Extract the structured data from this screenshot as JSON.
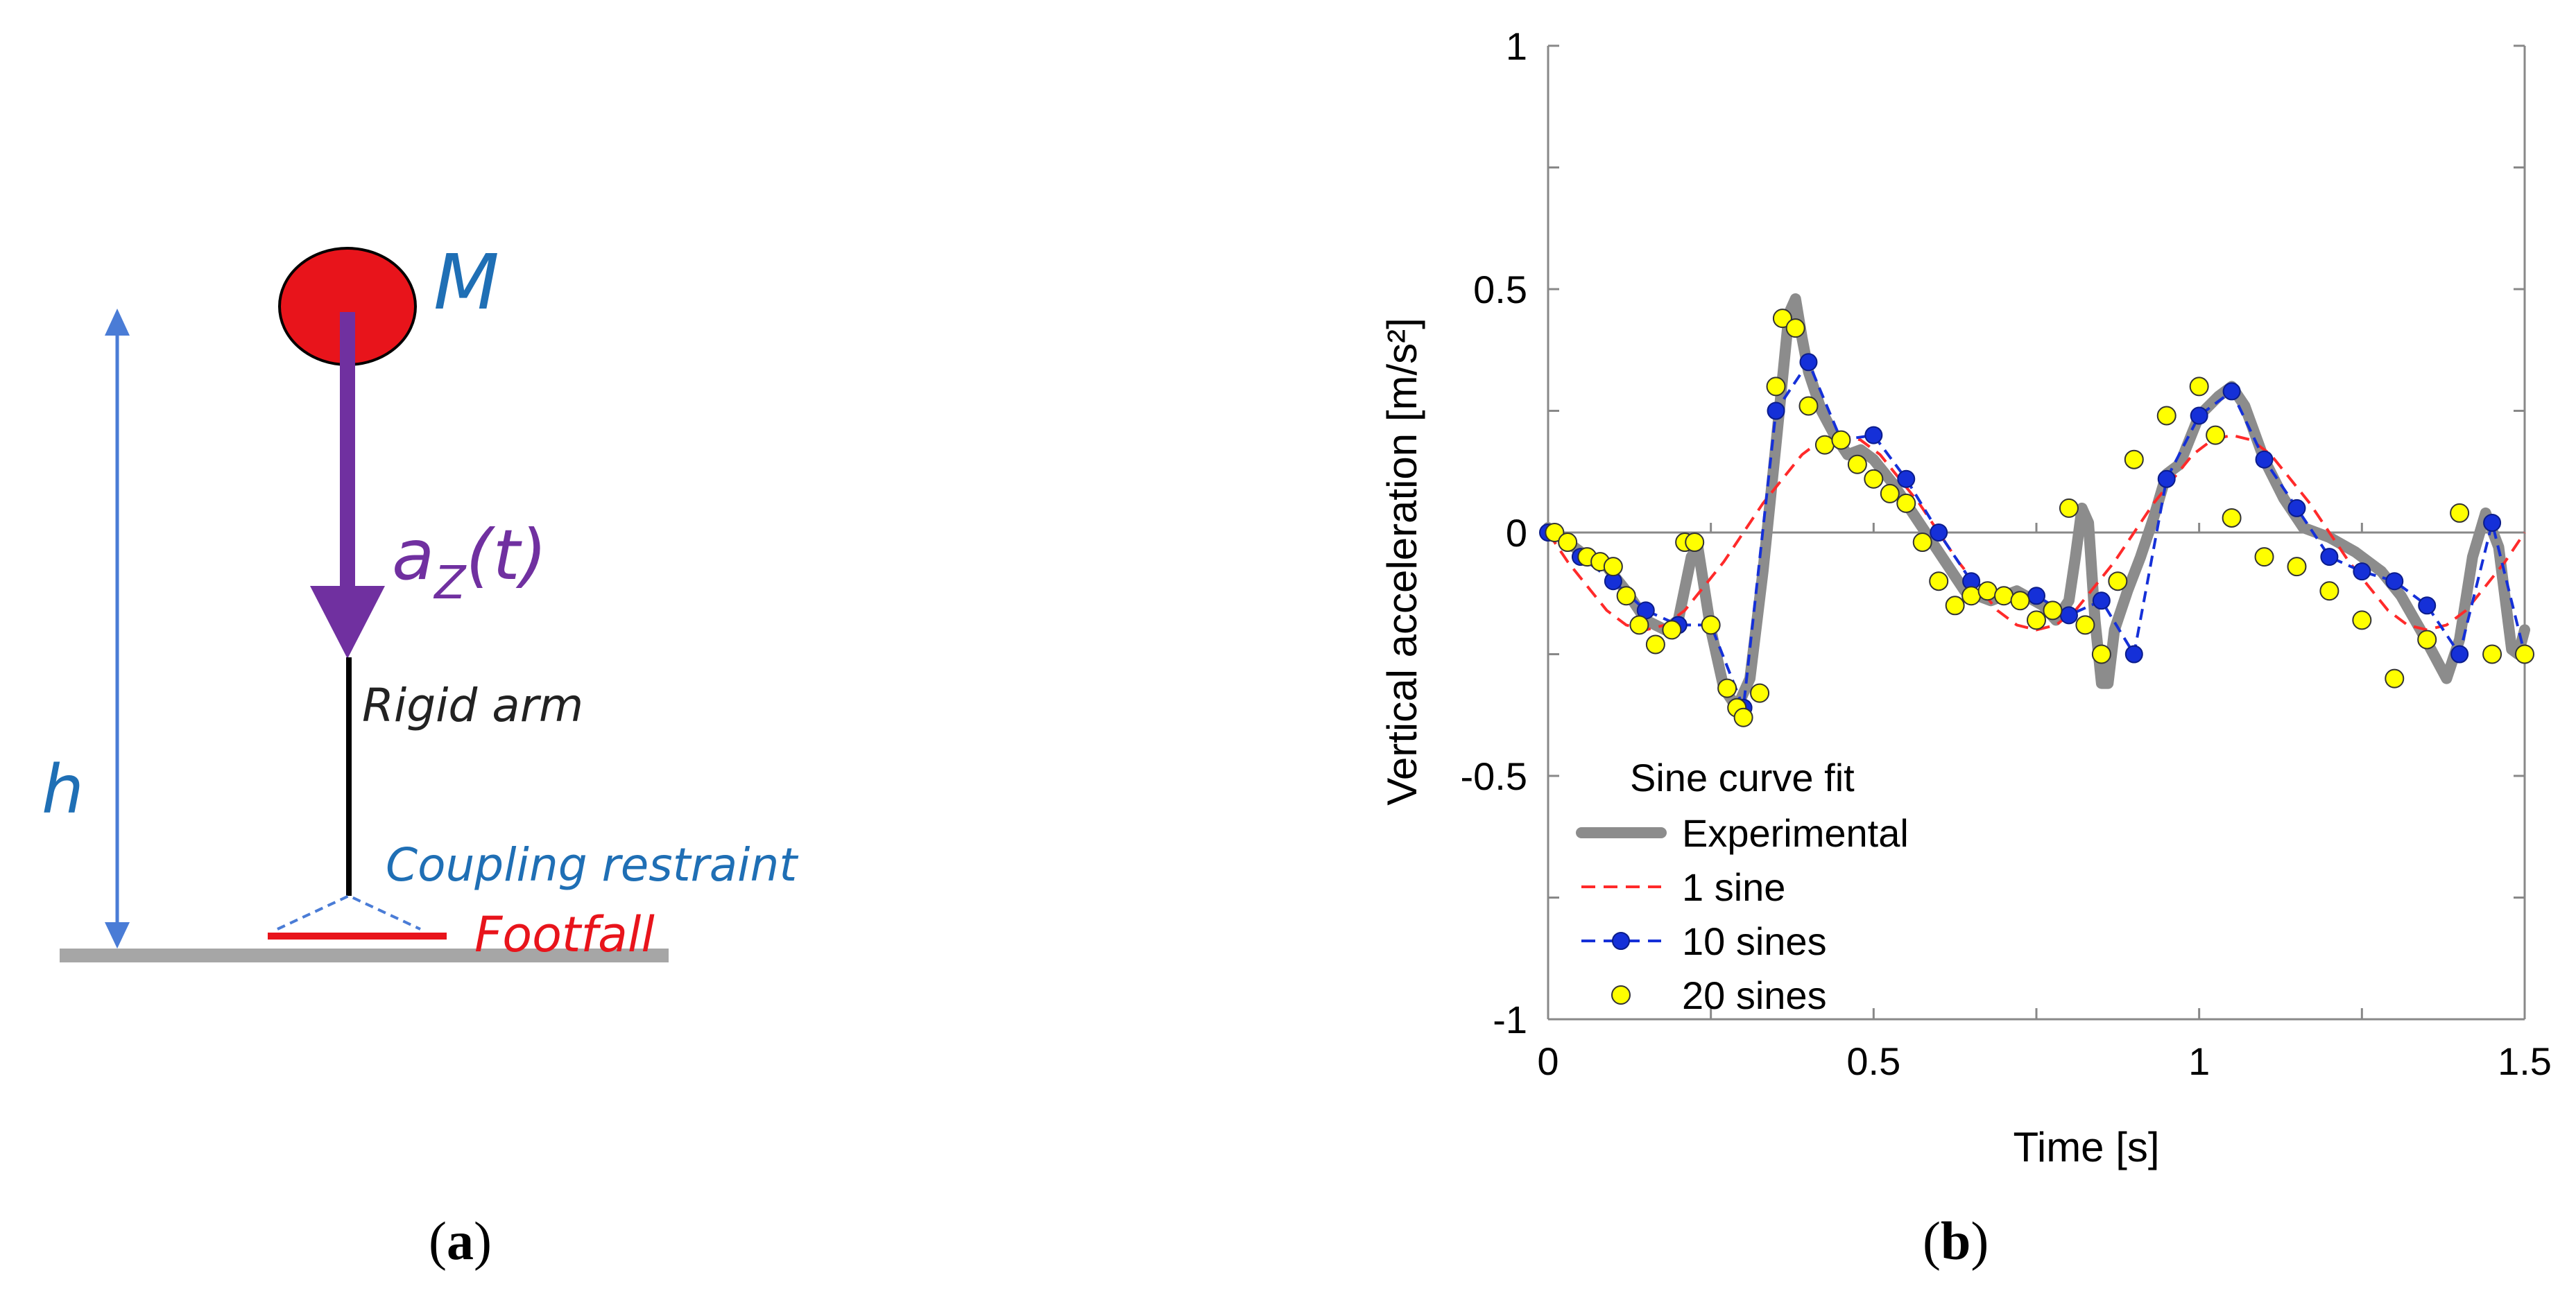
{
  "colors": {
    "mass": "#e8141b",
    "blue_label": "#1f6fb5",
    "arrow_purple": "#7030a0",
    "ground": "#a6a6a6",
    "dim_arrow": "#4a7cd6",
    "footfall": "#e8141b",
    "experimental": "#8c8c8c",
    "one_sine": "#ff2a2a",
    "ten_sines": "#1530d8",
    "twenty_sines": "#ffff00"
  },
  "panel_a": {
    "mass_label": "M",
    "accel_label_main": "a",
    "accel_label_sub": "Z",
    "accel_label_tail": "(t)",
    "rigid_arm_label": "Rigid arm",
    "height_label": "h",
    "coupling_label": "Coupling restraint",
    "footfall_label": "Footfall",
    "caption_open": "(",
    "caption_letter": "a",
    "caption_close": ")"
  },
  "panel_b": {
    "caption_open": "(",
    "caption_letter": "b",
    "caption_close": ")"
  },
  "chart_data": {
    "type": "line",
    "title": "",
    "xlabel": "Time [s]",
    "ylabel": "Vertical acceleration  [m/s²]",
    "xlim": [
      0,
      1.5
    ],
    "ylim": [
      -1,
      1
    ],
    "xticks": [
      0,
      0.5,
      1,
      1.5
    ],
    "xtick_labels": [
      "0",
      "0.5",
      "1",
      "1.5"
    ],
    "yticks": [
      -1,
      -0.5,
      0,
      0.5,
      1
    ],
    "ytick_labels": [
      "-1",
      "-0.5",
      "0",
      "0.5",
      "1"
    ],
    "legend_title": "Sine curve fit",
    "legend_position": "bottom-left",
    "series": [
      {
        "name": "Experimental",
        "style": "thick-line",
        "x": [
          0,
          0.03,
          0.06,
          0.09,
          0.12,
          0.15,
          0.18,
          0.2,
          0.22,
          0.23,
          0.25,
          0.27,
          0.29,
          0.31,
          0.33,
          0.35,
          0.37,
          0.38,
          0.39,
          0.4,
          0.42,
          0.44,
          0.46,
          0.48,
          0.5,
          0.53,
          0.56,
          0.6,
          0.64,
          0.68,
          0.72,
          0.76,
          0.78,
          0.8,
          0.81,
          0.82,
          0.83,
          0.84,
          0.85,
          0.86,
          0.87,
          0.89,
          0.91,
          0.93,
          0.95,
          0.97,
          1.0,
          1.03,
          1.05,
          1.07,
          1.1,
          1.13,
          1.16,
          1.2,
          1.24,
          1.28,
          1.31,
          1.34,
          1.36,
          1.38,
          1.4,
          1.42,
          1.44,
          1.46,
          1.48,
          1.49,
          1.5
        ],
        "y": [
          0.01,
          -0.02,
          -0.05,
          -0.07,
          -0.12,
          -0.18,
          -0.2,
          -0.18,
          -0.05,
          -0.03,
          -0.2,
          -0.32,
          -0.36,
          -0.3,
          -0.08,
          0.18,
          0.45,
          0.48,
          0.4,
          0.33,
          0.25,
          0.2,
          0.16,
          0.17,
          0.15,
          0.1,
          0.04,
          -0.04,
          -0.12,
          -0.14,
          -0.12,
          -0.15,
          -0.18,
          -0.14,
          -0.05,
          0.05,
          0.02,
          -0.18,
          -0.31,
          -0.31,
          -0.2,
          -0.12,
          -0.05,
          0.03,
          0.12,
          0.14,
          0.24,
          0.28,
          0.3,
          0.26,
          0.15,
          0.07,
          0.01,
          -0.01,
          -0.04,
          -0.08,
          -0.13,
          -0.2,
          -0.25,
          -0.3,
          -0.22,
          -0.05,
          0.04,
          -0.03,
          -0.24,
          -0.25,
          -0.2
        ]
      },
      {
        "name": "1 sine",
        "style": "dashed-line",
        "x": [
          0,
          0.03,
          0.06,
          0.09,
          0.12,
          0.15,
          0.18,
          0.21,
          0.24,
          0.27,
          0.3,
          0.33,
          0.36,
          0.39,
          0.42,
          0.45,
          0.48,
          0.51,
          0.54,
          0.57,
          0.6,
          0.63,
          0.66,
          0.69,
          0.72,
          0.75,
          0.78,
          0.81,
          0.84,
          0.87,
          0.9,
          0.93,
          0.96,
          0.99,
          1.02,
          1.05,
          1.08,
          1.11,
          1.14,
          1.17,
          1.2,
          1.23,
          1.26,
          1.29,
          1.32,
          1.35,
          1.38,
          1.41,
          1.44,
          1.47,
          1.5
        ],
        "y": [
          0,
          -0.06,
          -0.11,
          -0.16,
          -0.19,
          -0.2,
          -0.19,
          -0.16,
          -0.11,
          -0.06,
          0,
          0.06,
          0.11,
          0.16,
          0.19,
          0.2,
          0.19,
          0.16,
          0.11,
          0.06,
          0,
          -0.06,
          -0.11,
          -0.16,
          -0.19,
          -0.2,
          -0.19,
          -0.16,
          -0.11,
          -0.06,
          0,
          0.06,
          0.11,
          0.16,
          0.19,
          0.2,
          0.19,
          0.16,
          0.11,
          0.06,
          0,
          -0.06,
          -0.11,
          -0.16,
          -0.19,
          -0.2,
          -0.19,
          -0.16,
          -0.11,
          -0.06,
          0
        ]
      },
      {
        "name": "10 sines",
        "style": "dashed-line-dots",
        "x": [
          0,
          0.05,
          0.1,
          0.15,
          0.2,
          0.25,
          0.3,
          0.35,
          0.4,
          0.45,
          0.5,
          0.55,
          0.6,
          0.65,
          0.7,
          0.75,
          0.8,
          0.85,
          0.9,
          0.95,
          1.0,
          1.05,
          1.1,
          1.15,
          1.2,
          1.25,
          1.3,
          1.35,
          1.4,
          1.45,
          1.5
        ],
        "y": [
          0,
          -0.05,
          -0.1,
          -0.16,
          -0.19,
          -0.19,
          -0.36,
          0.25,
          0.35,
          0.19,
          0.2,
          0.11,
          0.0,
          -0.1,
          -0.13,
          -0.13,
          -0.17,
          -0.14,
          -0.25,
          0.11,
          0.24,
          0.29,
          0.15,
          0.05,
          -0.05,
          -0.08,
          -0.1,
          -0.15,
          -0.25,
          0.02,
          -0.25
        ]
      },
      {
        "name": "20 sines",
        "style": "markers",
        "x": [
          0.01,
          0.03,
          0.06,
          0.08,
          0.1,
          0.12,
          0.14,
          0.165,
          0.19,
          0.21,
          0.225,
          0.25,
          0.275,
          0.29,
          0.3,
          0.325,
          0.35,
          0.36,
          0.38,
          0.4,
          0.425,
          0.45,
          0.475,
          0.5,
          0.525,
          0.55,
          0.575,
          0.6,
          0.625,
          0.65,
          0.675,
          0.7,
          0.725,
          0.75,
          0.775,
          0.8,
          0.825,
          0.85,
          0.875,
          0.9,
          0.95,
          1.0,
          1.025,
          1.05,
          1.1,
          1.15,
          1.2,
          1.25,
          1.3,
          1.35,
          1.4,
          1.45,
          1.5
        ],
        "y": [
          0.0,
          -0.02,
          -0.05,
          -0.06,
          -0.07,
          -0.13,
          -0.19,
          -0.23,
          -0.2,
          -0.02,
          -0.02,
          -0.19,
          -0.32,
          -0.36,
          -0.38,
          -0.33,
          0.3,
          0.44,
          0.42,
          0.26,
          0.18,
          0.19,
          0.14,
          0.11,
          0.08,
          0.06,
          -0.02,
          -0.1,
          -0.15,
          -0.13,
          -0.12,
          -0.13,
          -0.14,
          -0.18,
          -0.16,
          0.05,
          -0.19,
          -0.25,
          -0.1,
          0.15,
          0.24,
          0.3,
          0.2,
          0.03,
          -0.05,
          -0.07,
          -0.12,
          -0.18,
          -0.3,
          -0.22,
          0.04,
          -0.25,
          -0.25
        ]
      }
    ]
  }
}
